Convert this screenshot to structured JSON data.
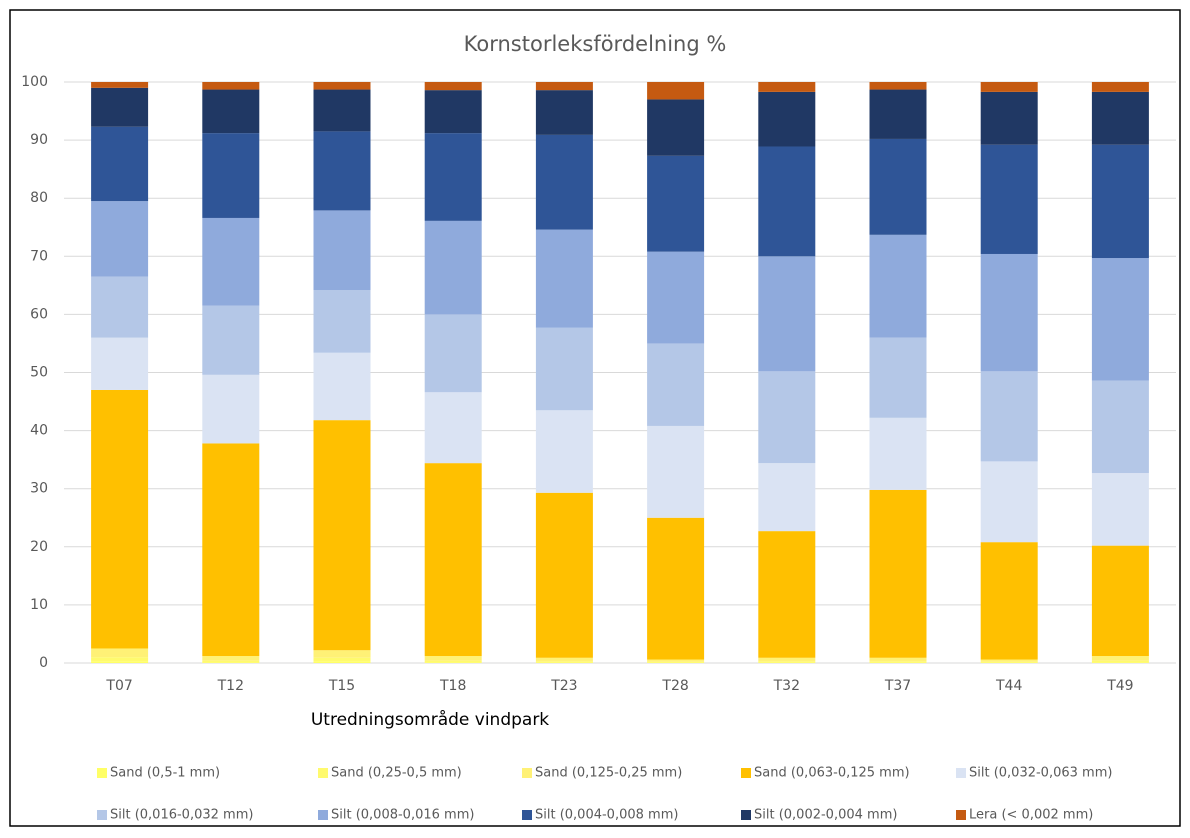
{
  "chart_data": {
    "type": "stacked_bar",
    "title": "Kornstorleksfördelning %",
    "x_label": "Utredningsområde vindpark",
    "categories": [
      "T07",
      "T12",
      "T15",
      "T18",
      "T23",
      "T28",
      "T32",
      "T37",
      "T44",
      "T49"
    ],
    "ylim": [
      0,
      100
    ],
    "yticks": [
      0,
      10,
      20,
      30,
      40,
      50,
      60,
      70,
      80,
      90,
      100
    ],
    "grid": true,
    "legend": "bottom",
    "series": [
      {
        "name": "Sand (0,5-1 mm)",
        "color": "#ffff66",
        "values": [
          0.3,
          0.1,
          0.3,
          0.1,
          0.1,
          0.1,
          0.1,
          0.1,
          0.1,
          0.1
        ]
      },
      {
        "name": "Sand (0,25-0,5 mm)",
        "color": "#fffa6e",
        "values": [
          0.7,
          0.3,
          0.6,
          0.3,
          0.2,
          0.1,
          0.2,
          0.2,
          0.1,
          0.3
        ]
      },
      {
        "name": "Sand (0,125-0,25 mm)",
        "color": "#fff176",
        "values": [
          1.5,
          0.8,
          1.3,
          0.8,
          0.6,
          0.4,
          0.6,
          0.6,
          0.4,
          0.8
        ]
      },
      {
        "name": "Sand (0,063-0,125 mm)",
        "color": "#ffc000",
        "values": [
          44.5,
          36.6,
          39.6,
          33.2,
          28.4,
          24.4,
          21.8,
          28.9,
          20.2,
          19.0
        ]
      },
      {
        "name": "Silt (0,032-0,063 mm)",
        "color": "#dae3f3",
        "values": [
          9.0,
          11.8,
          11.6,
          12.2,
          14.2,
          15.8,
          11.7,
          12.4,
          13.9,
          12.5
        ]
      },
      {
        "name": "Silt (0,016-0,032 mm)",
        "color": "#b4c7e7",
        "values": [
          10.5,
          11.9,
          10.8,
          13.4,
          14.2,
          14.2,
          15.8,
          13.8,
          15.5,
          15.9
        ]
      },
      {
        "name": "Silt (0,008-0,016 mm)",
        "color": "#8faadc",
        "values": [
          13.0,
          15.1,
          13.7,
          16.1,
          16.9,
          15.8,
          19.8,
          17.7,
          20.2,
          21.1
        ]
      },
      {
        "name": "Silt (0,004-0,008 mm)",
        "color": "#2f5597",
        "values": [
          12.8,
          14.6,
          13.6,
          15.1,
          16.3,
          16.5,
          18.9,
          16.5,
          18.8,
          19.5
        ]
      },
      {
        "name": "Silt (0,002-0,004 mm)",
        "color": "#203864",
        "values": [
          6.7,
          7.5,
          7.2,
          7.4,
          7.7,
          9.7,
          9.4,
          8.5,
          9.1,
          9.1
        ]
      },
      {
        "name": "Lera (< 0,002 mm)",
        "color": "#c55a11",
        "values": [
          1.0,
          1.3,
          1.3,
          1.4,
          1.4,
          3.0,
          1.7,
          1.3,
          1.7,
          1.7
        ]
      }
    ]
  }
}
